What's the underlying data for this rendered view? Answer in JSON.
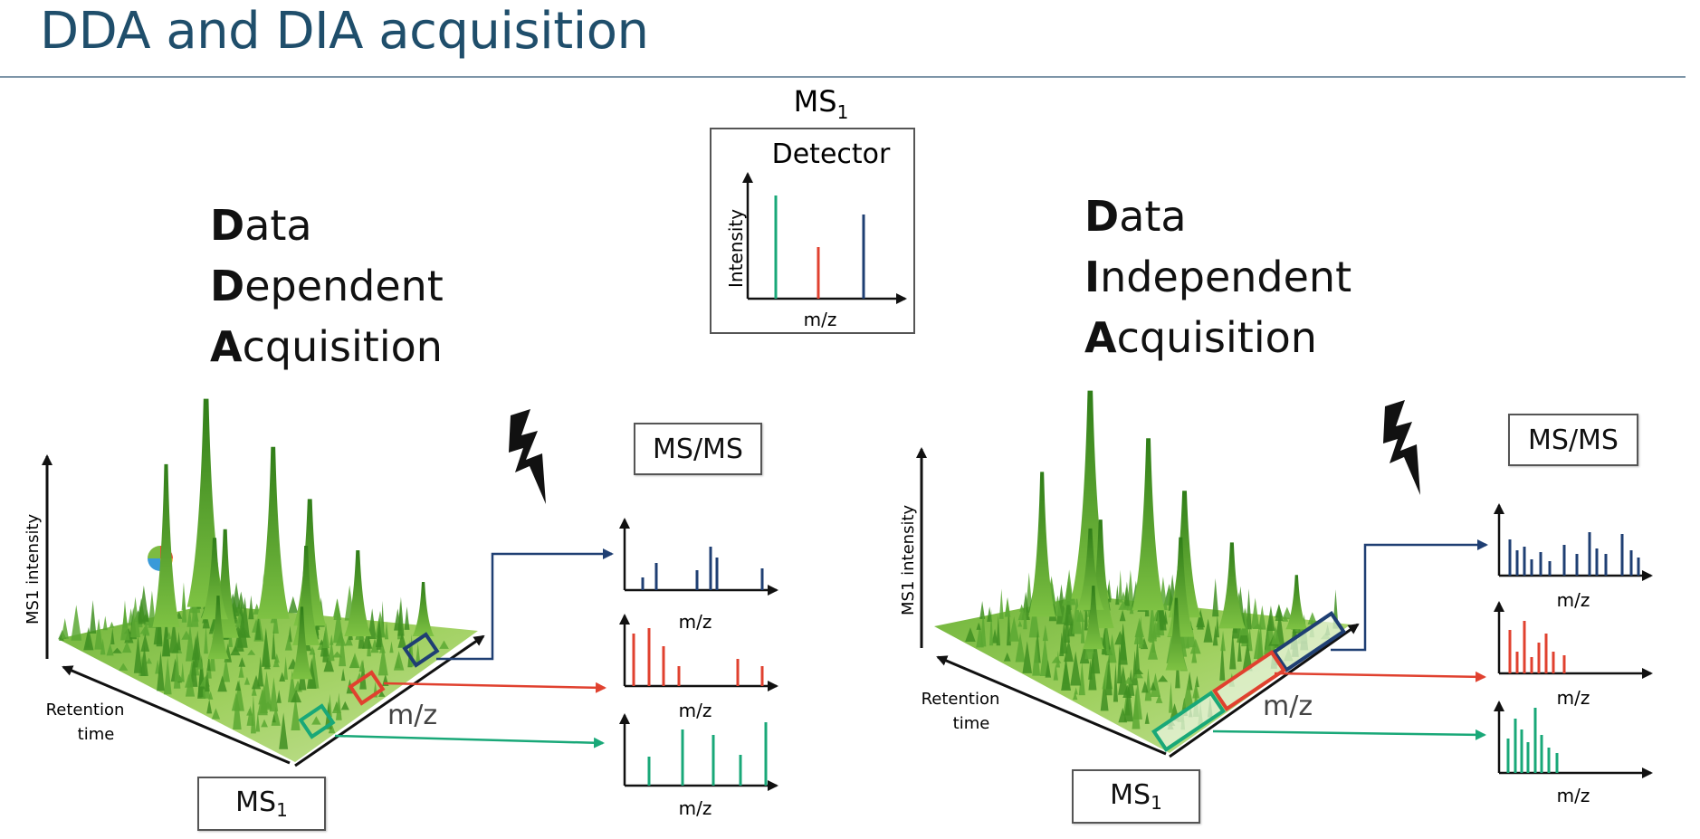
{
  "slide": {
    "title": "DDA and DIA acquisition"
  },
  "detector_panel": {
    "header_main": "MS",
    "header_sub": "1",
    "label": "Detector",
    "y_axis": "Intensity",
    "x_axis": "m/z"
  },
  "dda": {
    "line1_initial": "D",
    "line1_rest": "ata",
    "line2_initial": "D",
    "line2_rest": "ependent",
    "line3_initial": "A",
    "line3_rest": "cquisition",
    "y_axis": "MS1 intensity",
    "x_axis": "m/z",
    "rt_line1": "Retention",
    "rt_line2": "time",
    "msms_label": "MS/MS",
    "ms1_main": "MS",
    "ms1_sub": "1",
    "spectrum_xlabels": [
      "m/z",
      "m/z",
      "m/z"
    ]
  },
  "dia": {
    "line1_initial": "D",
    "line1_rest": "ata",
    "line2_initial": "I",
    "line2_rest": "ndependent",
    "line3_initial": "A",
    "line3_rest": "cquisition",
    "y_axis": "MS1 intensity",
    "x_axis": "m/z",
    "rt_line1": "Retention",
    "rt_line2": "time",
    "msms_label": "MS/MS",
    "ms1_main": "MS",
    "ms1_sub": "1",
    "spectrum_xlabels": [
      "m/z",
      "m/z",
      "m/z"
    ]
  },
  "colors": {
    "title": "#1f4e6b",
    "blue": "#1f3f73",
    "red": "#e0412f",
    "green": "#19a878",
    "surface_dark": "#2f7d18",
    "surface_light": "#a9d46a"
  },
  "icons": [
    "lightning-bolt-icon",
    "colorful-circle-icon"
  ]
}
